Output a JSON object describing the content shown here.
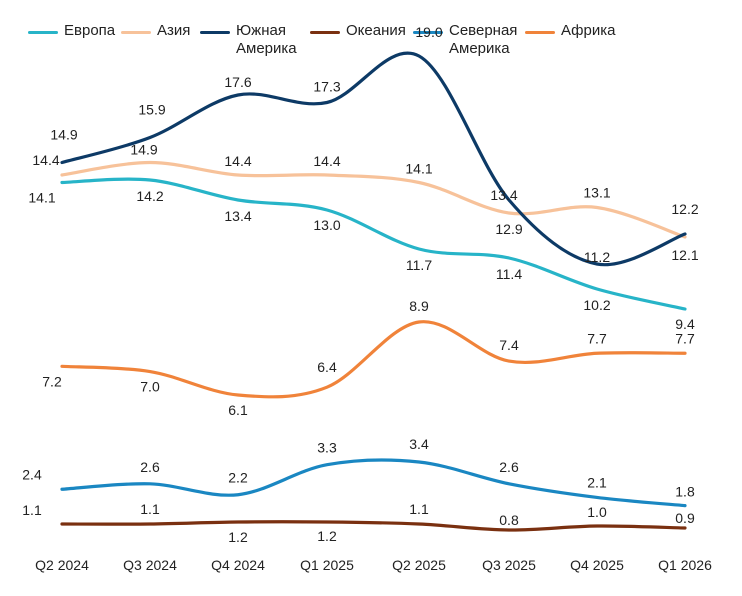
{
  "chart_data": {
    "type": "line",
    "categories": [
      "Q2 2024",
      "Q3 2024",
      "Q4 2024",
      "Q1 2025",
      "Q2 2025",
      "Q3 2025",
      "Q4 2025",
      "Q1 2026"
    ],
    "series": [
      {
        "name": "Европа",
        "color": "#27b4c8",
        "values": [
          14.1,
          14.2,
          13.4,
          13.0,
          11.7,
          11.4,
          10.2,
          9.4
        ]
      },
      {
        "name": "Азия",
        "color": "#f7c29a",
        "values": [
          14.4,
          14.9,
          14.4,
          14.4,
          14.1,
          12.9,
          13.1,
          12.1
        ]
      },
      {
        "name": "Южная Америка",
        "color": "#0d3a66",
        "values": [
          14.9,
          15.9,
          17.6,
          17.3,
          19.0,
          13.4,
          11.2,
          12.2
        ]
      },
      {
        "name": "Океания",
        "color": "#7a3010",
        "values": [
          1.1,
          1.1,
          1.2,
          1.2,
          1.1,
          0.8,
          1.0,
          0.9
        ]
      },
      {
        "name": "Северная Америка",
        "color": "#1a87c2",
        "values": [
          2.4,
          2.6,
          2.2,
          3.3,
          3.4,
          2.6,
          2.1,
          1.8
        ]
      },
      {
        "name": "Африка",
        "color": "#f0833a",
        "values": [
          7.2,
          7.0,
          6.1,
          6.4,
          8.9,
          7.4,
          7.7,
          7.7
        ]
      }
    ],
    "legend": [
      "Европа",
      "Азия",
      "Южная\nАмерика",
      "Океания",
      "Северная\nАмерика",
      "Африка"
    ],
    "legend_position": "top",
    "grid": false,
    "yaxis_visible": false,
    "data_labels": true,
    "smoothed": true
  }
}
